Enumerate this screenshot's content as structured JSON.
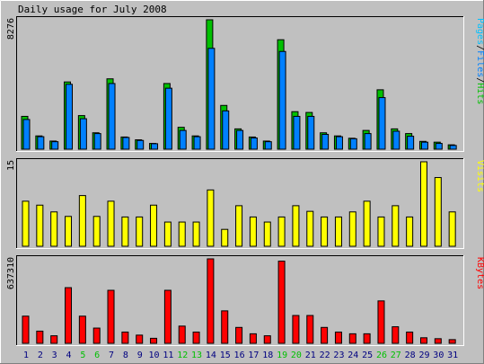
{
  "chart_data": [
    {
      "type": "bar",
      "title": "Daily usage for July 2008",
      "ymax_label": "8276",
      "ylim": [
        0,
        8276
      ],
      "categories": [
        "1",
        "2",
        "3",
        "4",
        "5",
        "6",
        "7",
        "8",
        "9",
        "10",
        "11",
        "12",
        "13",
        "14",
        "15",
        "16",
        "17",
        "18",
        "19",
        "20",
        "21",
        "22",
        "23",
        "24",
        "25",
        "26",
        "27",
        "28",
        "29",
        "30",
        "31"
      ],
      "weekend_days": [
        "5",
        "6",
        "12",
        "13",
        "19",
        "20",
        "26",
        "27"
      ],
      "legend": [
        "Pages",
        "Files",
        "Hits"
      ],
      "legend_separator": "/",
      "series": [
        {
          "name": "Hits",
          "color": "#00c000",
          "values": [
            2100,
            850,
            520,
            4300,
            2150,
            1050,
            4500,
            780,
            600,
            370,
            4200,
            1400,
            850,
            8276,
            2800,
            1300,
            780,
            520,
            7000,
            2400,
            2350,
            1050,
            850,
            700,
            1200,
            3800,
            1300,
            1000,
            500,
            450,
            280
          ]
        },
        {
          "name": "Files",
          "color": "#0080ff",
          "values": [
            1900,
            800,
            480,
            4150,
            1950,
            1000,
            4200,
            750,
            560,
            350,
            3900,
            1200,
            800,
            6450,
            2450,
            1200,
            720,
            480,
            6250,
            2100,
            2100,
            950,
            800,
            670,
            1000,
            3300,
            1150,
            830,
            450,
            370,
            240
          ]
        },
        {
          "name": "Pages",
          "color": "#00c0ff",
          "values": [
            0,
            0,
            0,
            0,
            0,
            0,
            0,
            0,
            0,
            0,
            0,
            0,
            0,
            0,
            0,
            0,
            0,
            0,
            0,
            0,
            0,
            0,
            0,
            0,
            0,
            0,
            0,
            0,
            0,
            0,
            0
          ]
        }
      ]
    },
    {
      "type": "bar",
      "ymax_label": "15",
      "ylim": [
        0,
        15
      ],
      "legend": [
        "Visits"
      ],
      "categories": [
        "1",
        "2",
        "3",
        "4",
        "5",
        "6",
        "7",
        "8",
        "9",
        "10",
        "11",
        "12",
        "13",
        "14",
        "15",
        "16",
        "17",
        "18",
        "19",
        "20",
        "21",
        "22",
        "23",
        "24",
        "25",
        "26",
        "27",
        "28",
        "29",
        "30",
        "31"
      ],
      "series": [
        {
          "name": "Visits",
          "color": "#ffff00",
          "values": [
            8,
            7.3,
            6.1,
            5.3,
            9,
            5.3,
            8,
            5.2,
            5.2,
            7.3,
            4.3,
            4.3,
            4.3,
            10,
            3,
            7.2,
            5.2,
            4.3,
            5.2,
            7.2,
            6.2,
            5.2,
            5.2,
            6.1,
            8,
            5.2,
            7.2,
            5.2,
            15,
            12.2,
            6.1
          ]
        }
      ]
    },
    {
      "type": "bar",
      "ymax_label": "637310",
      "ylim": [
        0,
        637310
      ],
      "legend": [
        "KBytes"
      ],
      "categories": [
        "1",
        "2",
        "3",
        "4",
        "5",
        "6",
        "7",
        "8",
        "9",
        "10",
        "11",
        "12",
        "13",
        "14",
        "15",
        "16",
        "17",
        "18",
        "19",
        "20",
        "21",
        "22",
        "23",
        "24",
        "25",
        "26",
        "27",
        "28",
        "29",
        "30",
        "31"
      ],
      "series": [
        {
          "name": "KBytes",
          "color": "#ff0000",
          "values": [
            205000,
            92000,
            57000,
            420000,
            205000,
            115000,
            400000,
            85000,
            62000,
            38000,
            400000,
            130000,
            85000,
            637310,
            245000,
            120000,
            72000,
            57000,
            620000,
            210000,
            210000,
            120000,
            85000,
            72000,
            72000,
            320000,
            125000,
            85000,
            42000,
            35000,
            28000
          ]
        }
      ]
    }
  ],
  "colors": {
    "background": "#c0c0c0",
    "panel": "#c0c0c0",
    "weekday_label": "#000080",
    "weekend_label": "#00c000"
  }
}
